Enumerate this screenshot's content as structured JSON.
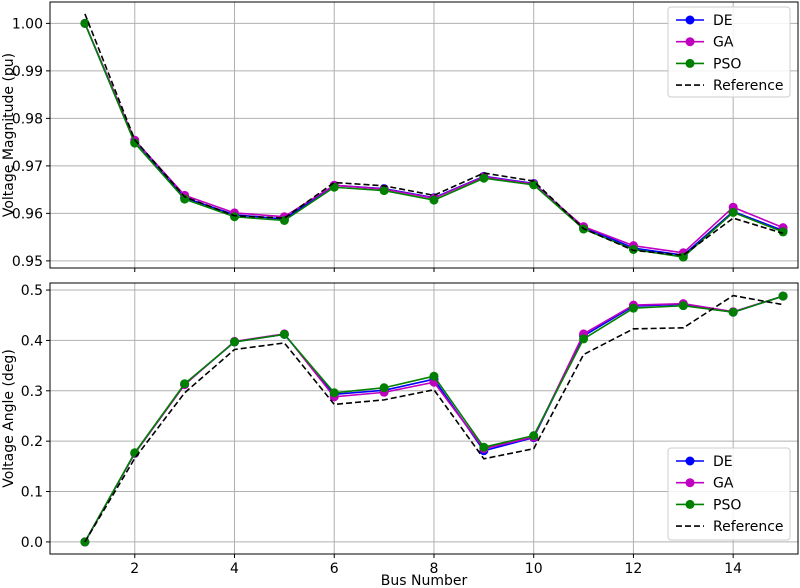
{
  "chart_data": [
    {
      "type": "line",
      "ylabel": "Voltage Magnitude (pu)",
      "xlabel": "",
      "xlim": [
        0.3,
        15.3
      ],
      "ylim": [
        0.9485,
        1.0045
      ],
      "xticks": [
        2,
        4,
        6,
        8,
        10,
        12,
        14
      ],
      "xticks_labeled": false,
      "yticks": [
        0.95,
        0.96,
        0.97,
        0.98,
        0.99,
        1.0
      ],
      "ytick_labels": [
        "0.95",
        "0.96",
        "0.97",
        "0.98",
        "0.99",
        "1.00"
      ],
      "grid": true,
      "legend_position": "top-right",
      "x": [
        1,
        2,
        3,
        4,
        5,
        6,
        7,
        8,
        9,
        10,
        11,
        12,
        13,
        14,
        15
      ],
      "series": [
        {
          "name": "DE",
          "color": "#0000ff",
          "marker": "circle",
          "linestyle": "solid",
          "values": [
            1.0,
            0.9749,
            0.9633,
            0.9597,
            0.9588,
            0.9659,
            0.9652,
            0.9633,
            0.9678,
            0.9663,
            0.9571,
            0.9527,
            0.9512,
            0.9604,
            0.9564
          ]
        },
        {
          "name": "GA",
          "color": "#bf00bf",
          "marker": "circle",
          "linestyle": "solid",
          "values": [
            1.0,
            0.9754,
            0.9638,
            0.9601,
            0.9593,
            0.9659,
            0.9651,
            0.9632,
            0.9677,
            0.9662,
            0.9572,
            0.9532,
            0.9517,
            0.9613,
            0.957
          ]
        },
        {
          "name": "PSO",
          "color": "#008000",
          "marker": "circle",
          "linestyle": "solid",
          "values": [
            1.0,
            0.9748,
            0.963,
            0.9593,
            0.9585,
            0.9655,
            0.9648,
            0.9628,
            0.9674,
            0.966,
            0.9567,
            0.9524,
            0.9508,
            0.9602,
            0.9561
          ]
        },
        {
          "name": "Reference",
          "color": "#000000",
          "marker": "none",
          "linestyle": "dashed",
          "values": [
            1.002,
            0.9755,
            0.9635,
            0.9595,
            0.959,
            0.9665,
            0.9658,
            0.9638,
            0.9685,
            0.9668,
            0.9568,
            0.9522,
            0.9512,
            0.959,
            0.9558
          ]
        }
      ]
    },
    {
      "type": "line",
      "ylabel": "Voltage Angle (deg)",
      "xlabel": "Bus Number",
      "xlim": [
        0.3,
        15.3
      ],
      "ylim": [
        -0.024,
        0.514
      ],
      "xticks": [
        2,
        4,
        6,
        8,
        10,
        12,
        14
      ],
      "xtick_labels": [
        "2",
        "4",
        "6",
        "8",
        "10",
        "12",
        "14"
      ],
      "yticks": [
        0.0,
        0.1,
        0.2,
        0.3,
        0.4,
        0.5
      ],
      "ytick_labels": [
        "0.0",
        "0.1",
        "0.2",
        "0.3",
        "0.4",
        "0.5"
      ],
      "grid": true,
      "legend_position": "bottom-right",
      "x": [
        1,
        2,
        3,
        4,
        5,
        6,
        7,
        8,
        9,
        10,
        11,
        12,
        13,
        14,
        15
      ],
      "series": [
        {
          "name": "DE",
          "color": "#0000ff",
          "marker": "circle",
          "linestyle": "solid",
          "values": [
            0.0,
            0.176,
            0.313,
            0.397,
            0.412,
            0.293,
            0.301,
            0.323,
            0.181,
            0.207,
            0.409,
            0.468,
            0.472,
            0.456,
            0.488
          ]
        },
        {
          "name": "GA",
          "color": "#bf00bf",
          "marker": "circle",
          "linestyle": "solid",
          "values": [
            0.0,
            0.176,
            0.312,
            0.398,
            0.413,
            0.288,
            0.297,
            0.317,
            0.185,
            0.208,
            0.413,
            0.47,
            0.473,
            0.457,
            0.488
          ]
        },
        {
          "name": "PSO",
          "color": "#008000",
          "marker": "circle",
          "linestyle": "solid",
          "values": [
            0.0,
            0.177,
            0.314,
            0.397,
            0.412,
            0.296,
            0.306,
            0.329,
            0.188,
            0.211,
            0.403,
            0.464,
            0.469,
            0.456,
            0.488
          ]
        },
        {
          "name": "Reference",
          "color": "#000000",
          "marker": "none",
          "linestyle": "dashed",
          "values": [
            0.0,
            0.166,
            0.296,
            0.382,
            0.395,
            0.273,
            0.282,
            0.302,
            0.165,
            0.185,
            0.372,
            0.423,
            0.425,
            0.489,
            0.471
          ]
        }
      ]
    }
  ]
}
